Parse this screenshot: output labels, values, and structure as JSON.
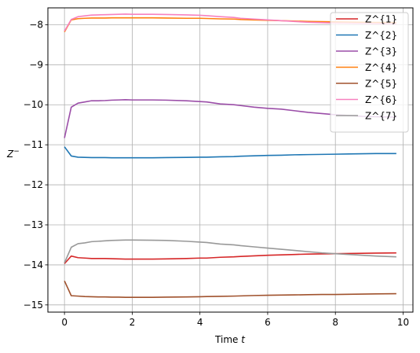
{
  "chart_data": {
    "type": "line",
    "title": "",
    "xlabel": "Time ",
    "xlabel_var": "t",
    "ylabel": "Z",
    "ylabel_sup": "−",
    "xlim": [
      -0.49,
      10.29
    ],
    "ylim": [
      -15.18,
      -7.58
    ],
    "xticks": [
      0,
      2,
      4,
      6,
      8,
      10
    ],
    "yticks": [
      -15,
      -14,
      -13,
      -12,
      -11,
      -10,
      -9,
      -8
    ],
    "xtick_labels": [
      "0",
      "2",
      "4",
      "6",
      "8",
      "10"
    ],
    "ytick_labels": [
      "−15",
      "−14",
      "−13",
      "−12",
      "−11",
      "−10",
      "−9",
      "−8"
    ],
    "grid": true,
    "legend_placement": "top-right",
    "x": [
      0,
      0.2,
      0.4,
      0.6,
      0.8,
      1.0,
      1.2,
      1.4,
      1.6,
      1.8,
      2.0,
      2.6,
      3.0,
      3.6,
      4.0,
      4.2,
      4.6,
      5.0,
      5.2,
      5.6,
      6.0,
      6.4,
      6.8,
      7.2,
      7.6,
      8.0,
      8.4,
      8.8,
      9.2,
      9.8
    ],
    "series": [
      {
        "name": "Z^{1}",
        "color": "#d62728",
        "values": [
          -13.97,
          -13.78,
          -13.82,
          -13.83,
          -13.84,
          -13.84,
          -13.84,
          -13.845,
          -13.85,
          -13.855,
          -13.855,
          -13.855,
          -13.85,
          -13.84,
          -13.83,
          -13.83,
          -13.81,
          -13.8,
          -13.79,
          -13.775,
          -13.76,
          -13.75,
          -13.74,
          -13.73,
          -13.725,
          -13.72,
          -13.715,
          -13.71,
          -13.705,
          -13.7
        ]
      },
      {
        "name": "Z^{2}",
        "color": "#1f77b4",
        "values": [
          -11.05,
          -11.28,
          -11.31,
          -11.315,
          -11.32,
          -11.32,
          -11.32,
          -11.325,
          -11.325,
          -11.325,
          -11.325,
          -11.325,
          -11.32,
          -11.315,
          -11.31,
          -11.31,
          -11.3,
          -11.295,
          -11.285,
          -11.275,
          -11.265,
          -11.26,
          -11.25,
          -11.245,
          -11.24,
          -11.235,
          -11.23,
          -11.225,
          -11.22,
          -11.22
        ]
      },
      {
        "name": "Z^{3}",
        "color": "#9b4ea8",
        "values": [
          -10.83,
          -10.06,
          -9.96,
          -9.93,
          -9.9,
          -9.9,
          -9.895,
          -9.885,
          -9.88,
          -9.875,
          -9.88,
          -9.88,
          -9.885,
          -9.9,
          -9.92,
          -9.93,
          -9.98,
          -10.0,
          -10.02,
          -10.06,
          -10.09,
          -10.11,
          -10.15,
          -10.19,
          -10.22,
          -10.25,
          -10.27,
          -10.29,
          -10.3,
          -10.31
        ]
      },
      {
        "name": "Z^{4}",
        "color": "#ff7f0e",
        "values": [
          -8.18,
          -7.88,
          -7.85,
          -7.84,
          -7.835,
          -7.835,
          -7.835,
          -7.83,
          -7.83,
          -7.83,
          -7.83,
          -7.83,
          -7.835,
          -7.84,
          -7.84,
          -7.845,
          -7.855,
          -7.86,
          -7.87,
          -7.88,
          -7.89,
          -7.9,
          -7.91,
          -7.92,
          -7.925,
          -7.93,
          -7.935,
          -7.94,
          -7.945,
          -7.945
        ]
      },
      {
        "name": "Z^{5}",
        "color": "#a0522d",
        "values": [
          -14.4,
          -14.77,
          -14.78,
          -14.79,
          -14.795,
          -14.8,
          -14.8,
          -14.805,
          -14.805,
          -14.81,
          -14.81,
          -14.81,
          -14.805,
          -14.8,
          -14.795,
          -14.79,
          -14.785,
          -14.78,
          -14.775,
          -14.765,
          -14.76,
          -14.755,
          -14.75,
          -14.745,
          -14.74,
          -14.74,
          -14.735,
          -14.73,
          -14.725,
          -14.72
        ]
      },
      {
        "name": "Z^{6}",
        "color": "#f781bf",
        "values": [
          -8.16,
          -7.87,
          -7.8,
          -7.78,
          -7.76,
          -7.755,
          -7.75,
          -7.745,
          -7.74,
          -7.735,
          -7.74,
          -7.74,
          -7.745,
          -7.755,
          -7.765,
          -7.775,
          -7.8,
          -7.82,
          -7.84,
          -7.86,
          -7.88,
          -7.9,
          -7.92,
          -7.94,
          -7.95,
          -7.96,
          -7.965,
          -7.97,
          -7.975,
          -7.98
        ]
      },
      {
        "name": "Z^{7}",
        "color": "#999999",
        "values": [
          -13.95,
          -13.56,
          -13.47,
          -13.45,
          -13.42,
          -13.41,
          -13.4,
          -13.39,
          -13.385,
          -13.38,
          -13.38,
          -13.385,
          -13.39,
          -13.41,
          -13.43,
          -13.44,
          -13.48,
          -13.5,
          -13.52,
          -13.55,
          -13.58,
          -13.61,
          -13.64,
          -13.67,
          -13.7,
          -13.72,
          -13.74,
          -13.76,
          -13.78,
          -13.8
        ]
      }
    ]
  }
}
